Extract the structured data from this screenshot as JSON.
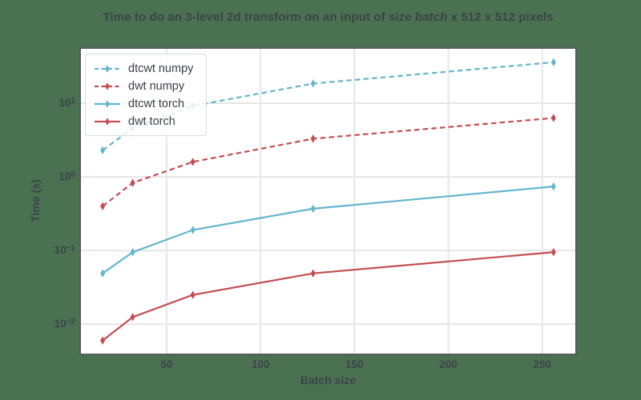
{
  "figure": {
    "title_prefix": "Time to do an 3-level 2d transform on an input of size ",
    "title_italic": "batch",
    "title_suffix": " x 512 x 512 pixels"
  },
  "colors": {
    "figure_background": "#4A7150",
    "axes_background": "#ffffff",
    "grid": "#e6e6e6",
    "frame": "#565b64",
    "text": "#3d434b",
    "series_blue": "#64b5cd",
    "series_red": "#c44e52"
  },
  "chart_data": {
    "type": "line",
    "title": "Time to do an 3-level 2d transform on an input of size batch x 512 x 512 pixels",
    "xlabel": "Batch size",
    "ylabel": "Time (s)",
    "yscale": "log",
    "grid": true,
    "legend_position": "upper left",
    "x": [
      16,
      32,
      64,
      128,
      256
    ],
    "series": [
      {
        "name": "dtcwt numpy",
        "color": "#64b5cd",
        "dashed": true,
        "values": [
          2.3,
          4.6,
          9.2,
          18.5,
          36
        ]
      },
      {
        "name": "dwt numpy",
        "color": "#c44e52",
        "dashed": true,
        "values": [
          0.4,
          0.83,
          1.6,
          3.3,
          6.3
        ]
      },
      {
        "name": "dtcwt torch",
        "color": "#64b5cd",
        "dashed": false,
        "values": [
          0.049,
          0.095,
          0.19,
          0.37,
          0.74
        ]
      },
      {
        "name": "dwt torch",
        "color": "#c44e52",
        "dashed": false,
        "values": [
          0.006,
          0.0125,
          0.025,
          0.049,
          0.095
        ]
      }
    ],
    "xticks": [
      50,
      100,
      150,
      200,
      250
    ],
    "ytick_exponents": [
      1,
      0,
      -1,
      -2
    ],
    "xlim": [
      4,
      268
    ],
    "ylim_log10": [
      -2.41,
      1.75
    ]
  }
}
